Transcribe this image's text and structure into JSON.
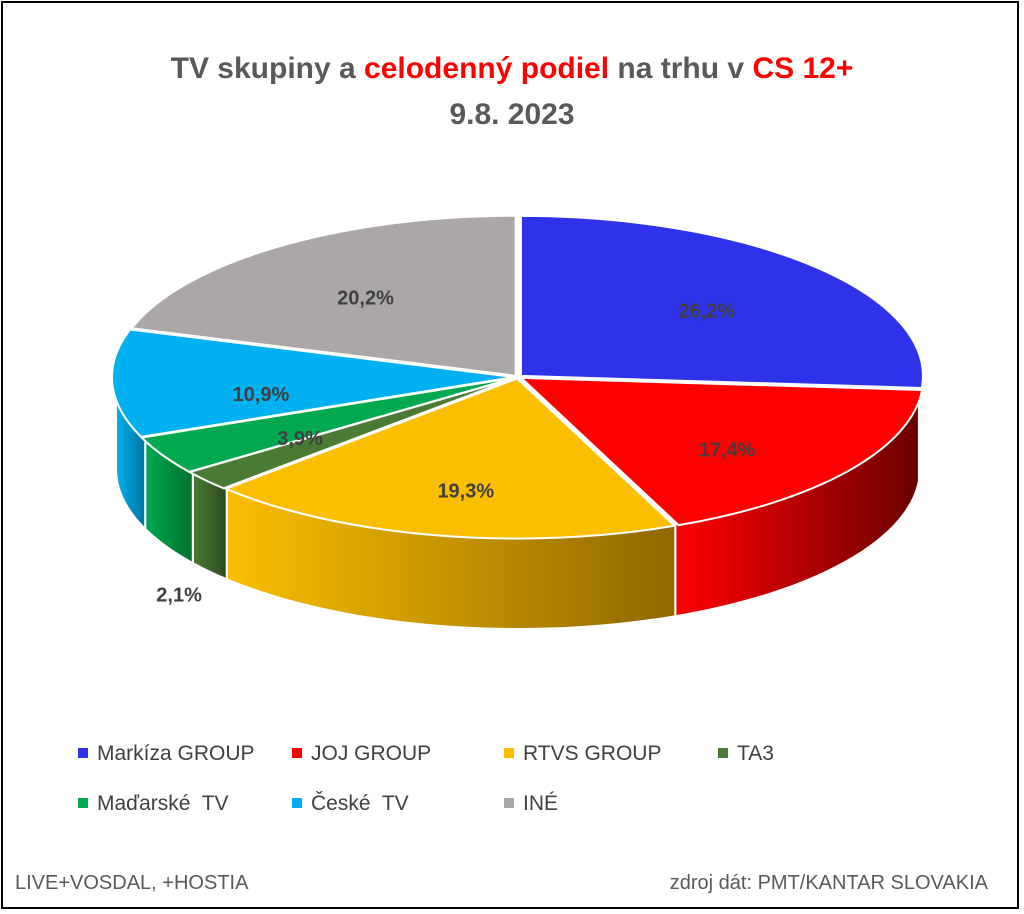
{
  "title": {
    "part1": "TV skupiny a ",
    "highlight1": "celodenný podiel",
    "part2": " na trhu v ",
    "highlight2": "CS 12+",
    "line2": "9.8. 2023"
  },
  "footer": {
    "left": "LIVE+VOSDAL, +HOSTIA",
    "right": "zdroj dát: PMT/KANTAR SLOVAKIA"
  },
  "chart_data": {
    "type": "pie",
    "style": "3d",
    "legend_position": "bottom",
    "series": [
      {
        "name": "Markíza GROUP",
        "value": 26.2,
        "label": "26,2%",
        "color": "#2e32e8",
        "side_color": "#1a1d8a"
      },
      {
        "name": "JOJ GROUP",
        "value": 17.4,
        "label": "17,4%",
        "color": "#ff0000",
        "side_color": "#6b0000"
      },
      {
        "name": "RTVS GROUP",
        "value": 19.3,
        "label": "19,3%",
        "color": "#fbbf00",
        "side_color": "#8f6800"
      },
      {
        "name": "TA3",
        "value": 2.1,
        "label": "2,1%",
        "color": "#4a7a34",
        "side_color": "#2c4a1f"
      },
      {
        "name": "Maďarské  TV",
        "value": 3.9,
        "label": "3,9%",
        "color": "#00a950",
        "side_color": "#00702f"
      },
      {
        "name": "České  TV",
        "value": 10.9,
        "label": "10,9%",
        "color": "#00b0f0",
        "side_color": "#0073a0"
      },
      {
        "name": "INÉ",
        "value": 20.2,
        "label": "20,2%",
        "color": "#aba7a6",
        "side_color": "#6b6867"
      }
    ]
  }
}
